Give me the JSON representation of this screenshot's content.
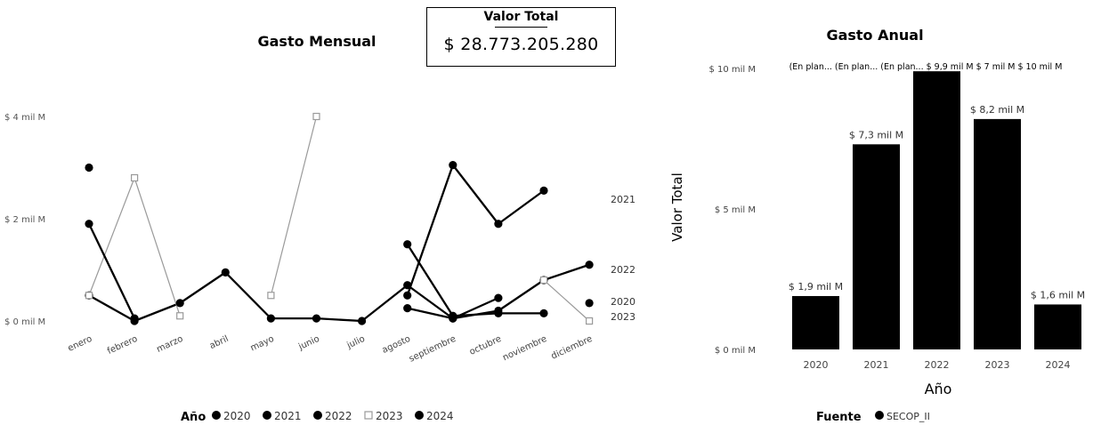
{
  "kpi": {
    "label": "Valor Total",
    "value": "$ 28.773.205.280"
  },
  "chart_data": [
    {
      "type": "line",
      "title": "Gasto Mensual",
      "xlabel": "",
      "ylabel": "",
      "y_ticks": [
        "$ 0 mil M",
        "$ 2 mil M",
        "$ 4 mil M"
      ],
      "ylim": [
        0,
        4
      ],
      "categories": [
        "enero",
        "febrero",
        "marzo",
        "abril",
        "mayo",
        "junio",
        "julio",
        "agosto",
        "septiembre",
        "octubre",
        "noviembre",
        "diciembre"
      ],
      "legend_title": "Año",
      "legend_position": "bottom",
      "series": [
        {
          "name": "2020",
          "color": "#000000",
          "end_label": "2020",
          "values": [
            null,
            null,
            null,
            null,
            null,
            null,
            null,
            0.25,
            0.05,
            0.45,
            null,
            0.35
          ]
        },
        {
          "name": "2021",
          "color": "#000000",
          "end_label": "2021",
          "values": [
            3.0,
            null,
            null,
            null,
            null,
            null,
            null,
            0.5,
            3.05,
            1.9,
            2.55,
            null
          ]
        },
        {
          "name": "2022",
          "color": "#000000",
          "end_label": "2022",
          "values": [
            0.5,
            0.0,
            0.35,
            0.95,
            0.05,
            0.05,
            0.0,
            0.7,
            0.05,
            0.2,
            0.8,
            1.1
          ]
        },
        {
          "name": "2023",
          "color": "#9a9a9a",
          "end_label": "2023",
          "values": [
            0.5,
            2.8,
            0.1,
            null,
            0.5,
            4.0,
            null,
            null,
            null,
            null,
            0.8,
            0.0
          ]
        },
        {
          "name": "2024",
          "color": "#000000",
          "end_label": "",
          "values": [
            1.9,
            0.05,
            null,
            null,
            null,
            null,
            null,
            1.5,
            0.1,
            0.15,
            0.15,
            null
          ]
        }
      ]
    },
    {
      "type": "bar",
      "title": "Gasto Anual",
      "xlabel": "Año",
      "ylabel": "Valor Total",
      "y_ticks": [
        "$ 0 mil M",
        "$ 5 mil M",
        "$ 10 mil M"
      ],
      "ylim": [
        0,
        10
      ],
      "categories": [
        "2020",
        "2021",
        "2022",
        "2023",
        "2024"
      ],
      "values": [
        1.9,
        7.3,
        9.9,
        8.2,
        1.6
      ],
      "data_labels": [
        "$ 1,9 mil M",
        "$ 7,3 mil M",
        "$ 9,9 mil M",
        "$ 8,2 mil M",
        "$ 1,6 mil M"
      ],
      "top_annotation": "(En plan... (En plan... (En plan... $ 9,9 mil M $ 7 mil M $ 10 mil M",
      "legend_title": "Fuente",
      "legend_position": "bottom",
      "series": [
        {
          "name": "SECOP_II",
          "color": "#000000"
        }
      ]
    }
  ]
}
